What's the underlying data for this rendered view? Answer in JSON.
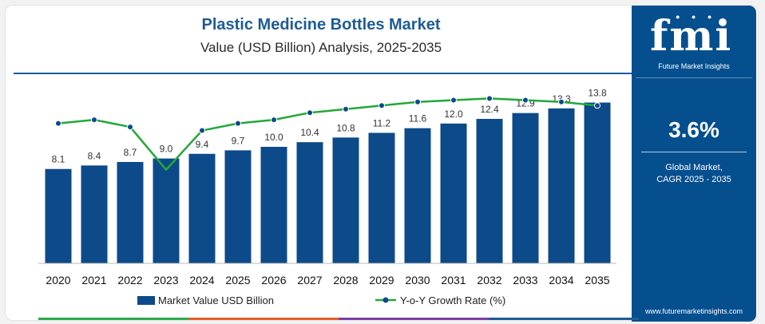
{
  "header": {
    "title": "Plastic Medicine Bottles Market",
    "subtitle": "Value (USD Billion) Analysis, 2025-2035"
  },
  "sidebar": {
    "logo_text": "fmi",
    "logo_subtitle": "Future Market Insights",
    "cagr_value": "3.6%",
    "cagr_label_line1": "Global Market,",
    "cagr_label_line2": "CAGR 2025 - 2035",
    "website": "www.futuremarketinsights.com"
  },
  "chart_data": {
    "type": "bar",
    "categories": [
      "2020",
      "2021",
      "2022",
      "2023",
      "2024",
      "2025",
      "2026",
      "2027",
      "2028",
      "2029",
      "2030",
      "2031",
      "2032",
      "2033",
      "2034",
      "2035"
    ],
    "series": [
      {
        "name": "Market Value USD Billion",
        "type": "bar",
        "values": [
          8.1,
          8.4,
          8.7,
          9.0,
          9.4,
          9.7,
          10.0,
          10.4,
          10.8,
          11.2,
          11.6,
          12.0,
          12.4,
          12.9,
          13.3,
          13.8
        ],
        "labels": [
          "8.1",
          "8.4",
          "8.7",
          "9.0",
          "9.4",
          "9.7",
          "10.0",
          "10.4",
          "10.8",
          "11.2",
          "11.6",
          "12.0",
          "12.4",
          "12.9",
          "13.3",
          "13.8"
        ]
      },
      {
        "name": "Y-o-Y Growth Rate (%)",
        "type": "line",
        "values": [
          3.7,
          3.8,
          3.6,
          2.4,
          3.5,
          3.7,
          3.8,
          4.0,
          4.1,
          4.2,
          4.3,
          4.35,
          4.4,
          4.35,
          4.3,
          4.2
        ]
      }
    ],
    "ylim": [
      0,
      15
    ],
    "grid": false,
    "legend": "bottom",
    "colors": {
      "bar": "#0d4a8a",
      "line": "#22a83a",
      "marker": "#0d4a8a"
    }
  },
  "footer_colors": [
    "#2fa84f",
    "#e4602a",
    "#7a3fa0",
    "#1d5c96"
  ]
}
